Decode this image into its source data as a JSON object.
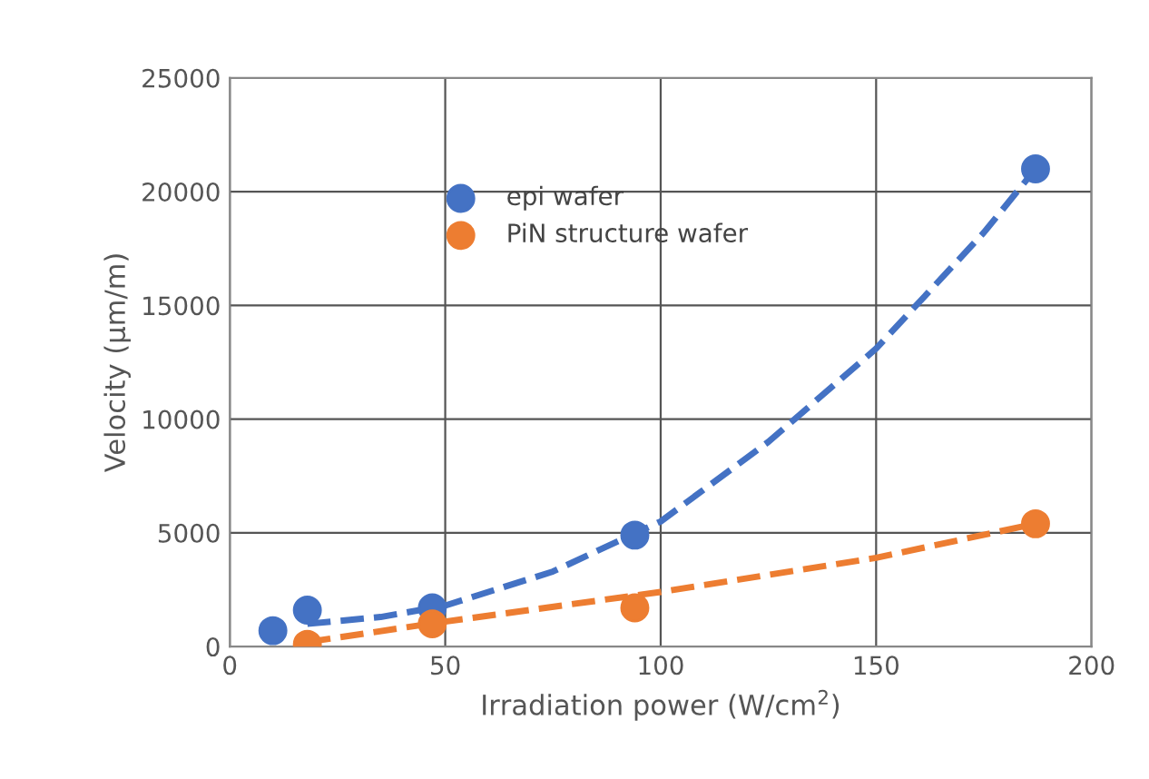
{
  "chart_data": {
    "type": "scatter",
    "xlabel": "Irradiation power (W/cm$^{2}$)",
    "ylabel": "Velocity (µm/m)",
    "xlim": [
      0,
      200
    ],
    "xticks": [
      0,
      50,
      100,
      150,
      200
    ],
    "ylim": [
      0,
      25000
    ],
    "yticks": [
      0,
      5000,
      10000,
      15000,
      20000,
      25000
    ],
    "grid": true,
    "legend": "top",
    "marker": "circle",
    "series": [
      {
        "name": "epi wafer",
        "color": "#4472c4",
        "x": [
          10,
          18,
          47,
          94,
          187
        ],
        "values": [
          700,
          1600,
          1700,
          4900,
          21000
        ]
      },
      {
        "name": "PiN structure wafer",
        "color": "#ed7d31",
        "x": [
          18,
          47,
          94,
          187
        ],
        "values": [
          100,
          1000,
          1700,
          5400
        ]
      },
      {
        "type": "line",
        "line_style": "dashed",
        "marker": "none",
        "color": "#4472c4",
        "x": [
          18,
          35,
          50,
          75,
          100,
          125,
          150,
          175,
          187
        ],
        "values": [
          1000,
          1300,
          1800,
          3300,
          5500,
          9000,
          13100,
          18200,
          21000
        ]
      },
      {
        "type": "line",
        "line_style": "dashed",
        "marker": "none",
        "color": "#ed7d31",
        "x": [
          18,
          50,
          100,
          150,
          187
        ],
        "values": [
          200,
          1100,
          2400,
          3900,
          5400
        ]
      }
    ]
  }
}
